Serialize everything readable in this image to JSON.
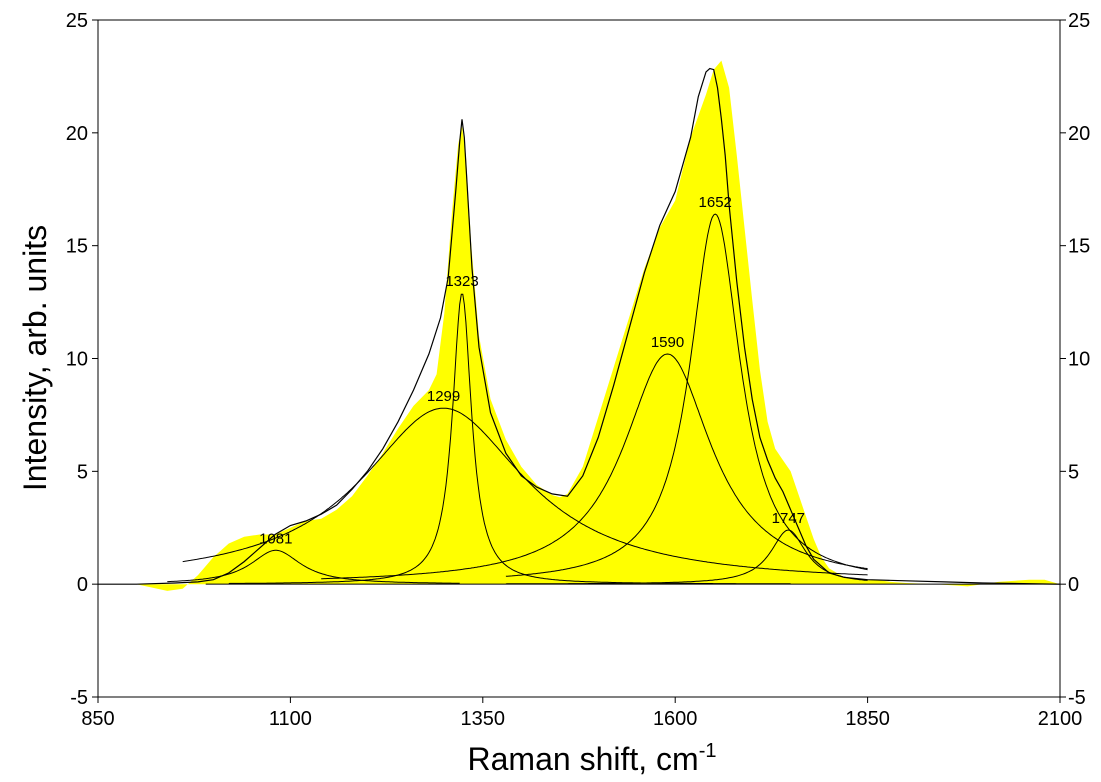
{
  "chart_data": {
    "type": "area",
    "title": "",
    "xlabel": "Raman shift, cm",
    "xlabel_superscript": "-1",
    "ylabel": "Intensity, arb. units",
    "xlim": [
      850,
      2100
    ],
    "ylim": [
      -5,
      25
    ],
    "x_ticks": [
      850,
      1100,
      1350,
      1600,
      1850,
      2100
    ],
    "x_tick_labels": [
      "850",
      "1100",
      "1350",
      "1600",
      "1850",
      "2100"
    ],
    "y_ticks": [
      -5,
      0,
      5,
      10,
      15,
      20,
      25
    ],
    "y_tick_labels": [
      "-5",
      "0",
      "5",
      "10",
      "15",
      "20",
      "25"
    ],
    "grid": false,
    "legend": "none",
    "colors": {
      "fill": "#ffff00",
      "line": "#000000"
    },
    "measured_spectrum": {
      "x": [
        850,
        900,
        940,
        960,
        980,
        1000,
        1020,
        1040,
        1060,
        1080,
        1100,
        1120,
        1140,
        1160,
        1180,
        1200,
        1220,
        1240,
        1260,
        1280,
        1290,
        1300,
        1310,
        1318,
        1323,
        1328,
        1335,
        1345,
        1360,
        1380,
        1400,
        1420,
        1440,
        1450,
        1460,
        1480,
        1500,
        1520,
        1540,
        1560,
        1580,
        1600,
        1620,
        1640,
        1650,
        1660,
        1670,
        1680,
        1690,
        1700,
        1710,
        1720,
        1730,
        1740,
        1750,
        1760,
        1770,
        1780,
        1790,
        1800,
        1820,
        1840,
        1860,
        1880,
        1900,
        1940,
        1980,
        2020,
        2060,
        2080,
        2100
      ],
      "y": [
        0,
        0,
        -0.3,
        -0.2,
        0.4,
        1.2,
        1.8,
        2.1,
        2.2,
        2.2,
        2.5,
        2.8,
        2.9,
        3.3,
        3.9,
        4.8,
        5.8,
        6.9,
        7.9,
        8.6,
        9.3,
        12.0,
        16.5,
        19.5,
        20.3,
        19.0,
        15.0,
        11.0,
        8.2,
        6.4,
        5.2,
        4.4,
        3.95,
        3.85,
        4.0,
        5.2,
        7.4,
        9.6,
        11.8,
        14.0,
        15.8,
        17.0,
        19.8,
        21.7,
        22.8,
        23.2,
        22.0,
        19.0,
        15.8,
        12.6,
        9.5,
        7.2,
        6.0,
        5.5,
        5.0,
        4.0,
        3.0,
        2.0,
        1.2,
        0.7,
        0.3,
        0.2,
        0.2,
        0.1,
        0.05,
        0,
        -0.1,
        0.1,
        0.2,
        0.2,
        0
      ]
    },
    "fit_envelope": {
      "x": [
        850,
        900,
        950,
        980,
        1000,
        1020,
        1040,
        1060,
        1080,
        1100,
        1120,
        1140,
        1160,
        1180,
        1200,
        1220,
        1240,
        1260,
        1280,
        1295,
        1305,
        1315,
        1320,
        1323,
        1326,
        1330,
        1336,
        1345,
        1360,
        1380,
        1400,
        1420,
        1440,
        1460,
        1480,
        1500,
        1520,
        1540,
        1560,
        1580,
        1600,
        1620,
        1630,
        1640,
        1645,
        1650,
        1655,
        1660,
        1665,
        1670,
        1680,
        1690,
        1700,
        1710,
        1720,
        1730,
        1740,
        1750,
        1760,
        1770,
        1780,
        1800,
        1820,
        1850,
        1900,
        1950,
        2000,
        2100
      ],
      "y": [
        0,
        0,
        0.05,
        0.1,
        0.2,
        0.5,
        1.0,
        1.6,
        2.2,
        2.6,
        2.8,
        3.1,
        3.5,
        4.2,
        5.0,
        6.0,
        7.2,
        8.6,
        10.2,
        11.8,
        13.6,
        17.5,
        19.6,
        20.6,
        19.8,
        17.5,
        14.0,
        10.5,
        7.6,
        5.8,
        4.8,
        4.3,
        4.0,
        3.9,
        4.8,
        6.5,
        8.8,
        11.3,
        13.8,
        15.9,
        17.4,
        19.8,
        21.6,
        22.7,
        22.85,
        22.8,
        22.0,
        20.6,
        19.0,
        16.8,
        13.4,
        10.5,
        8.2,
        6.5,
        5.5,
        4.7,
        4.1,
        3.3,
        2.5,
        1.7,
        1.1,
        0.5,
        0.3,
        0.2,
        0.15,
        0.1,
        0.05,
        0
      ]
    },
    "components": [
      {
        "label": "1081",
        "center": 1081,
        "height": 1.5,
        "hwhm": 40,
        "x_range": [
          940,
          1320
        ]
      },
      {
        "label": "1299",
        "center": 1299,
        "height": 7.8,
        "hwhm": 130,
        "x_range": [
          960,
          1850
        ]
      },
      {
        "label": "1323",
        "center": 1323,
        "height": 12.9,
        "hwhm": 15,
        "x_range": [
          1020,
          1750
        ]
      },
      {
        "label": "1590",
        "center": 1590,
        "height": 10.2,
        "hwhm": 70,
        "x_range": [
          1140,
          1850
        ]
      },
      {
        "label": "1652",
        "center": 1652,
        "height": 16.4,
        "hwhm": 40,
        "x_range": [
          1380,
          1850
        ]
      },
      {
        "label": "1747",
        "center": 1747,
        "height": 2.4,
        "hwhm": 28,
        "x_range": [
          1380,
          1850
        ]
      }
    ],
    "baseline": {
      "x_range": [
        990,
        2100
      ],
      "y": 0
    }
  }
}
